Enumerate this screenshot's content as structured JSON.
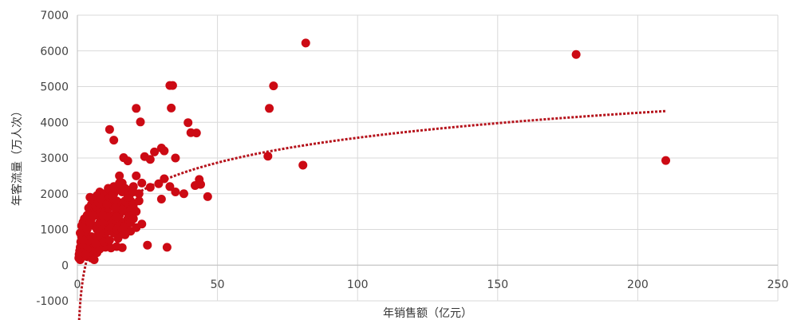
{
  "chart_data": {
    "type": "scatter",
    "title": "",
    "xlabel": "年销售额（亿元）",
    "ylabel": "年客流量（万人次）",
    "xlim": [
      0,
      250
    ],
    "ylim": [
      -1000,
      7000
    ],
    "x_ticks": [
      "0",
      "50",
      "100",
      "150",
      "200",
      "250"
    ],
    "y_ticks": [
      "-1000",
      "0",
      "1000",
      "2000",
      "3000",
      "4000",
      "5000",
      "6000",
      "7000"
    ],
    "grid": true,
    "legend": "none",
    "colors": {
      "points": "#cc0a14",
      "trendline": "#b5121b"
    },
    "series": [
      {
        "values": [
          [
            81.5,
            6220
          ],
          [
            178,
            5900
          ],
          [
            210,
            2930
          ],
          [
            33,
            5030
          ],
          [
            34,
            5030
          ],
          [
            70,
            5020
          ],
          [
            68.5,
            4390
          ],
          [
            21,
            4390
          ],
          [
            33.5,
            4400
          ],
          [
            22.5,
            4010
          ],
          [
            11.5,
            3800
          ],
          [
            39.5,
            3990
          ],
          [
            42.5,
            3700
          ],
          [
            40.5,
            3710
          ],
          [
            13,
            3500
          ],
          [
            30,
            3280
          ],
          [
            31,
            3200
          ],
          [
            27.5,
            3170
          ],
          [
            24,
            3040
          ],
          [
            68,
            3050
          ],
          [
            80.5,
            2800
          ],
          [
            35,
            3000
          ],
          [
            26,
            2960
          ],
          [
            16.5,
            3010
          ],
          [
            18,
            2920
          ],
          [
            46.5,
            1920
          ],
          [
            43.5,
            2400
          ],
          [
            42,
            2230
          ],
          [
            44,
            2260
          ],
          [
            38,
            2000
          ],
          [
            35,
            2050
          ],
          [
            33,
            2200
          ],
          [
            31,
            2420
          ],
          [
            29,
            2280
          ],
          [
            30,
            1850
          ],
          [
            26,
            2180
          ],
          [
            23,
            2300
          ],
          [
            21,
            2500
          ],
          [
            20,
            2200
          ],
          [
            22,
            2000
          ],
          [
            19,
            1800
          ],
          [
            17.5,
            1500
          ],
          [
            16,
            1200
          ],
          [
            15,
            900
          ],
          [
            18,
            1000
          ],
          [
            16,
            2300
          ],
          [
            15,
            2500
          ],
          [
            14,
            2200
          ],
          [
            13,
            2000
          ],
          [
            12,
            1850
          ],
          [
            11,
            1800
          ],
          [
            10,
            1900
          ],
          [
            9,
            2000
          ],
          [
            8,
            2050
          ],
          [
            7,
            1950
          ],
          [
            6,
            1800
          ],
          [
            5,
            1700
          ],
          [
            4.5,
            1900
          ],
          [
            4,
            1600
          ],
          [
            3.5,
            1400
          ],
          [
            3,
            1200
          ],
          [
            2.5,
            1100
          ],
          [
            2,
            1000
          ],
          [
            1.8,
            900
          ],
          [
            1.5,
            800
          ],
          [
            1.2,
            650
          ],
          [
            1,
            500
          ],
          [
            0.8,
            400
          ],
          [
            0.6,
            300
          ],
          [
            0.5,
            200
          ],
          [
            2,
            1200
          ],
          [
            3,
            900
          ],
          [
            4,
            1100
          ],
          [
            5,
            1300
          ],
          [
            6,
            1500
          ],
          [
            7,
            1400
          ],
          [
            8,
            1600
          ],
          [
            9,
            1700
          ],
          [
            10,
            1500
          ],
          [
            11,
            1600
          ],
          [
            12,
            1700
          ],
          [
            13,
            1650
          ],
          [
            14,
            1800
          ],
          [
            15,
            1750
          ],
          [
            16,
            1700
          ],
          [
            17,
            1650
          ],
          [
            18,
            1600
          ],
          [
            19,
            1550
          ],
          [
            20,
            1700
          ],
          [
            6,
            1100
          ],
          [
            7,
            1000
          ],
          [
            8,
            1200
          ],
          [
            9,
            1300
          ],
          [
            10,
            1100
          ],
          [
            11,
            1200
          ],
          [
            12,
            1400
          ],
          [
            13,
            1300
          ],
          [
            14,
            1500
          ],
          [
            15,
            1400
          ],
          [
            16,
            1550
          ],
          [
            17,
            1800
          ],
          [
            18,
            1900
          ],
          [
            19,
            1400
          ],
          [
            20,
            1600
          ],
          [
            5,
            800
          ],
          [
            6,
            700
          ],
          [
            7,
            800
          ],
          [
            8,
            900
          ],
          [
            9,
            1000
          ],
          [
            10,
            1250
          ],
          [
            11,
            1350
          ],
          [
            12,
            1150
          ],
          [
            13,
            1250
          ],
          [
            14,
            1350
          ],
          [
            4,
            700
          ],
          [
            5,
            600
          ],
          [
            3,
            600
          ],
          [
            6,
            500
          ],
          [
            7,
            600
          ],
          [
            8,
            700
          ],
          [
            9,
            800
          ],
          [
            10,
            900
          ],
          [
            11,
            950
          ],
          [
            12,
            1050
          ],
          [
            13,
            900
          ],
          [
            14,
            1000
          ],
          [
            15,
            1100
          ],
          [
            16,
            1000
          ],
          [
            17,
            1100
          ],
          [
            18,
            1300
          ],
          [
            19,
            1200
          ],
          [
            20,
            1300
          ],
          [
            21,
            1500
          ],
          [
            22,
            1800
          ],
          [
            10,
            2000
          ],
          [
            12,
            2050
          ],
          [
            14,
            2100
          ],
          [
            16,
            2050
          ],
          [
            18,
            2100
          ],
          [
            20,
            2050
          ],
          [
            11,
            2150
          ],
          [
            13,
            2200
          ],
          [
            15,
            2300
          ],
          [
            17,
            2150
          ],
          [
            2,
            700
          ],
          [
            1.5,
            1100
          ],
          [
            1,
            900
          ],
          [
            2.5,
            1300
          ],
          [
            3.5,
            1000
          ],
          [
            4.5,
            1200
          ],
          [
            5.5,
            1400
          ],
          [
            6.5,
            1650
          ],
          [
            7.5,
            1750
          ],
          [
            8.5,
            1850
          ],
          [
            5,
            200
          ],
          [
            6,
            150
          ],
          [
            7,
            350
          ],
          [
            4.5,
            400
          ],
          [
            3.5,
            450
          ],
          [
            2,
            500
          ],
          [
            1,
            150
          ],
          [
            1.5,
            350
          ],
          [
            2.5,
            250
          ],
          [
            3,
            300
          ],
          [
            10,
            500
          ],
          [
            12,
            480
          ],
          [
            14,
            520
          ],
          [
            16,
            490
          ],
          [
            25,
            560
          ],
          [
            32,
            500
          ],
          [
            8,
            450
          ],
          [
            6.5,
            600
          ],
          [
            9.5,
            650
          ],
          [
            11.5,
            700
          ],
          [
            14.5,
            750
          ],
          [
            17,
            850
          ],
          [
            19,
            950
          ],
          [
            21,
            1050
          ],
          [
            23,
            1150
          ],
          [
            9,
            1400
          ],
          [
            10.5,
            1700
          ],
          [
            11.5,
            1900
          ],
          [
            12.5,
            1950
          ],
          [
            13.5,
            1600
          ]
        ]
      }
    ],
    "trendline": {
      "type": "logarithmic",
      "x_start": 0.5,
      "x_end": 210,
      "a": 1007,
      "b": -1070
    }
  }
}
